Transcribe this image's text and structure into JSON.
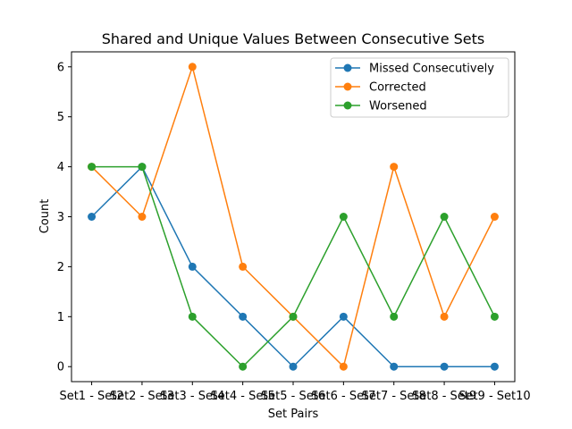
{
  "chart_data": {
    "type": "line",
    "title": "Shared and Unique Values Between Consecutive Sets",
    "xlabel": "Set Pairs",
    "ylabel": "Count",
    "categories": [
      "Set1 - Set2",
      "Set2 - Set3",
      "Set3 - Set4",
      "Set4 - Set5",
      "Set5 - Set6",
      "Set6 - Set7",
      "Set7 - Set8",
      "Set8 - Set9",
      "Set9 - Set10"
    ],
    "ylim": [
      -0.3,
      6.3
    ],
    "yticks": [
      0,
      1,
      2,
      3,
      4,
      5,
      6
    ],
    "grid": false,
    "legend_position": "top-right",
    "series": [
      {
        "name": "Missed Consecutively",
        "color": "#1f77b4",
        "values": [
          3,
          4,
          2,
          1,
          0,
          1,
          0,
          0,
          0
        ]
      },
      {
        "name": "Corrected",
        "color": "#ff7f0e",
        "values": [
          4,
          3,
          6,
          2,
          1,
          0,
          4,
          1,
          3
        ]
      },
      {
        "name": "Worsened",
        "color": "#2ca02c",
        "values": [
          4,
          4,
          1,
          0,
          1,
          3,
          1,
          3,
          1
        ]
      }
    ]
  }
}
